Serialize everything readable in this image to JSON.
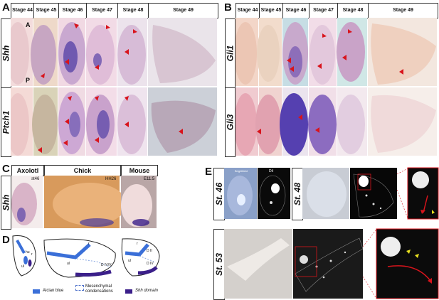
{
  "panels": {
    "A": {
      "label": "A",
      "stages": [
        "Stage 44",
        "Stage 45",
        "Stage 46",
        "Stage 47",
        "Stage 48",
        "Stage 49"
      ],
      "rows": [
        "Shh",
        "Ptch1"
      ],
      "axis_markers": [
        "A",
        "P"
      ]
    },
    "B": {
      "label": "B",
      "stages": [
        "Stage 44",
        "Stage 45",
        "Stage 46",
        "Stage 47",
        "Stage 48",
        "Stage 49"
      ],
      "rows": [
        "Gli1",
        "Gli3"
      ]
    },
    "C": {
      "label": "C",
      "row": "Shh",
      "species": [
        "Axolotl",
        "Chick",
        "Mouse"
      ],
      "stage_labels": [
        "st46",
        "HH26",
        "E11.5"
      ]
    },
    "D": {
      "label": "D",
      "diagram_labels": {
        "axolotl": [
          "hu",
          "r",
          "ul"
        ],
        "chick": [
          "r",
          "ul",
          "D IV/V"
        ],
        "mouse": [
          "r",
          "D II",
          "ul",
          "D IV"
        ]
      },
      "legend": [
        {
          "label": "Alcian blue",
          "color": "#3a6fd8"
        },
        {
          "label": "Mesenchymal condensations",
          "color": "#ffffff"
        },
        {
          "label": "Shh domain",
          "color": "#3b1f8a"
        }
      ]
    },
    "E": {
      "label": "E",
      "rows": [
        "St. 46",
        "St. 48",
        "St. 53"
      ],
      "channel_labels": [
        "Brightfield",
        "DiI"
      ]
    }
  },
  "colors": {
    "arrow": "#d8141c",
    "stain": "#5a45a8",
    "tissue_light": "#e8cdd6",
    "background_pink": "#f0d6d6"
  }
}
